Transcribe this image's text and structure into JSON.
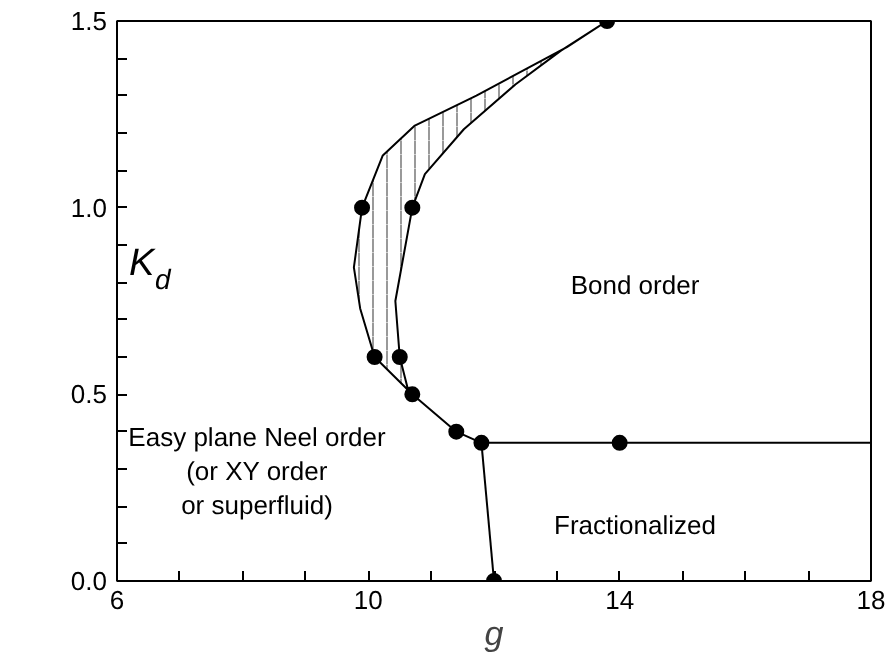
{
  "chart_data": {
    "type": "line",
    "xlabel": "g",
    "ylabel": "K$_{d}$",
    "xlim": [
      6,
      18
    ],
    "ylim": [
      0,
      1.5
    ],
    "xticks": [
      6,
      {
        "value": 7,
        "label": null
      },
      {
        "value": 8,
        "label": null
      },
      {
        "value": 9,
        "label": null
      },
      10,
      {
        "value": 11,
        "label": null
      },
      {
        "value": 12,
        "label": null
      },
      {
        "value": 13,
        "label": null
      },
      14,
      {
        "value": 15,
        "label": null
      },
      {
        "value": 16,
        "label": null
      },
      {
        "value": 17,
        "label": null
      },
      18
    ],
    "yticks": [
      {
        "value": 0,
        "label": "0.0"
      },
      {
        "value": 0.1,
        "label": null
      },
      {
        "value": 0.2,
        "label": null
      },
      {
        "value": 0.3,
        "label": null
      },
      {
        "value": 0.4,
        "label": null
      },
      {
        "value": 0.5,
        "label": "0.5"
      },
      {
        "value": 0.6,
        "label": null
      },
      {
        "value": 0.7,
        "label": null
      },
      {
        "value": 0.8,
        "label": null
      },
      {
        "value": 0.9,
        "label": null
      },
      {
        "value": 1.0,
        "label": "1.0"
      },
      {
        "value": 1.1,
        "label": null
      },
      {
        "value": 1.2,
        "label": null
      },
      {
        "value": 1.3,
        "label": null
      },
      {
        "value": 1.4,
        "label": null
      },
      {
        "value": 1.5,
        "label": "1.5"
      }
    ],
    "grid": false,
    "series": [
      {
        "type": "area",
        "color": "#000000",
        "x": [
          13.8,
          13.16,
          11.72,
          10.74,
          10.23,
          9.9,
          9.77,
          9.87,
          10.1,
          10.7,
          10.62,
          10.5,
          10.43,
          10.7,
          10.9,
          11.52,
          12.34,
          13.06,
          13.8
        ],
        "values": [
          1.5,
          1.43,
          1.3,
          1.22,
          1.14,
          1.0,
          0.84,
          0.73,
          0.6,
          0.5,
          0.52,
          0.6,
          0.75,
          1.0,
          1.09,
          1.21,
          1.33,
          1.42,
          1.5
        ]
      },
      {
        "color": "#000000",
        "x": [
          10.7,
          11.4,
          11.8
        ],
        "values": [
          0.5,
          0.4,
          0.37
        ]
      },
      {
        "color": "#000000",
        "x": [
          11.8,
          18
        ],
        "values": [
          0.37,
          0.37
        ]
      },
      {
        "color": "#000000",
        "x": [
          11.8,
          12.0
        ],
        "values": [
          0.37,
          0
        ]
      },
      {
        "type": "scatter",
        "color": "#000000",
        "marker": "circle",
        "x": [
          13.8,
          9.9,
          10.7,
          10.1,
          10.5,
          10.7,
          11.4,
          11.8,
          14,
          12.0
        ],
        "values": [
          1.5,
          1.0,
          1.0,
          0.6,
          0.6,
          0.5,
          0.4,
          0.37,
          0.37,
          0
        ]
      }
    ],
    "annotations": [
      "Bond order",
      "Fractionalized",
      "Easy plane Neel order\n(or XY order\nor superfluid)"
    ]
  }
}
